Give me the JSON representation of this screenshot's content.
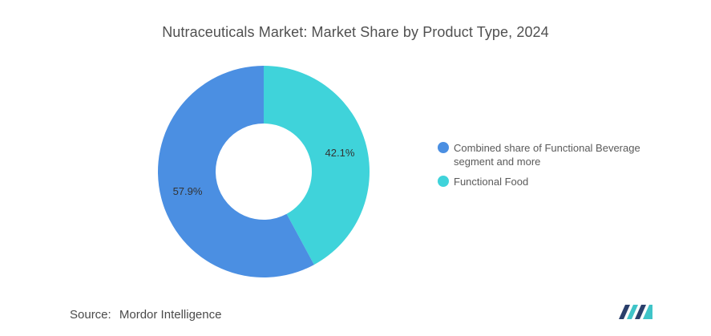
{
  "chart_data": {
    "type": "pie",
    "title": "Nutraceuticals Market: Market Share by Product Type, 2024",
    "donut": true,
    "legend_position": "right",
    "categories": [
      "Combined share of Functional Beverage segment and more",
      "Functional Food"
    ],
    "values": [
      57.9,
      42.1
    ],
    "value_labels": [
      "57.9%",
      "42.1%"
    ],
    "colors": [
      "#4b8fe2",
      "#3fd3da"
    ]
  },
  "source": {
    "label": "Source:",
    "value": "Mordor Intelligence"
  }
}
